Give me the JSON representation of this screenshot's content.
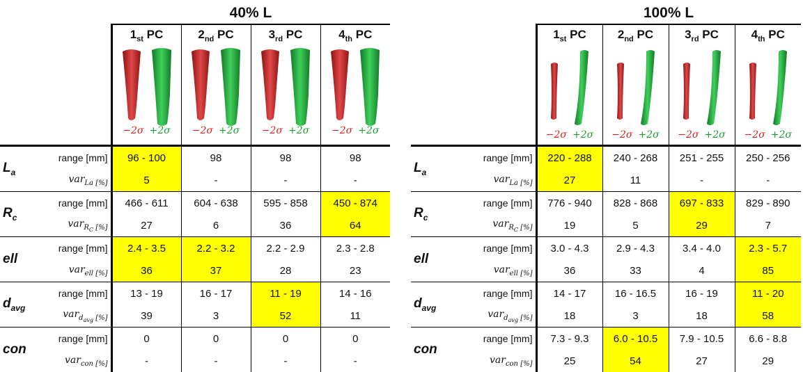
{
  "panels": [
    {
      "title": "40% L",
      "sigma_minus": "−2σ",
      "sigma_plus": "+2σ",
      "highlight_color": "#ffff00",
      "columns": [
        {
          "ordinal": "1",
          "suffix": "st",
          "label": "PC"
        },
        {
          "ordinal": "2",
          "suffix": "nd",
          "label": "PC"
        },
        {
          "ordinal": "3",
          "suffix": "rd",
          "label": "PC"
        },
        {
          "ordinal": "4",
          "suffix": "th",
          "label": "PC"
        }
      ],
      "groups": [
        {
          "symbol": "L",
          "subscript": "a",
          "rows": [
            {
              "label": "range [mm]",
              "cells": [
                {
                  "text": "96 - 100",
                  "highlight": true
                },
                {
                  "text": "98"
                },
                {
                  "text": "98"
                },
                {
                  "text": "98"
                }
              ]
            },
            {
              "var_label": {
                "base": "var",
                "sub": "La",
                "unit": "[%]"
              },
              "cells": [
                {
                  "text": "5",
                  "highlight": true
                },
                {
                  "text": "-"
                },
                {
                  "text": "-"
                },
                {
                  "text": "-"
                }
              ]
            }
          ]
        },
        {
          "symbol": "R",
          "subscript": "c",
          "rows": [
            {
              "label": "range [mm]",
              "cells": [
                {
                  "text": "466 - 611"
                },
                {
                  "text": "604 - 638"
                },
                {
                  "text": "595 - 858"
                },
                {
                  "text": "450 - 874",
                  "highlight": true
                }
              ]
            },
            {
              "var_label": {
                "base": "var",
                "sub": "R",
                "sub2": "C",
                "unit": "[%]"
              },
              "cells": [
                {
                  "text": "27"
                },
                {
                  "text": "6"
                },
                {
                  "text": "36"
                },
                {
                  "text": "64",
                  "highlight": true
                }
              ]
            }
          ]
        },
        {
          "symbol": "ell",
          "rows": [
            {
              "label": "range [mm]",
              "cells": [
                {
                  "text": "2.4 - 3.5",
                  "highlight": true
                },
                {
                  "text": "2.2 - 3.2",
                  "highlight": true
                },
                {
                  "text": "2.2 - 2.9"
                },
                {
                  "text": "2.3 - 2.8"
                }
              ]
            },
            {
              "var_label": {
                "base": "var",
                "sub": "ell",
                "unit": "[%]"
              },
              "cells": [
                {
                  "text": "36",
                  "highlight": true
                },
                {
                  "text": "37",
                  "highlight": true
                },
                {
                  "text": "28"
                },
                {
                  "text": "23"
                }
              ]
            }
          ]
        },
        {
          "symbol": "d",
          "subscript": "avg",
          "rows": [
            {
              "label": "range [mm]",
              "cells": [
                {
                  "text": "13 - 19"
                },
                {
                  "text": "16 - 17"
                },
                {
                  "text": "11 - 19",
                  "highlight": true
                },
                {
                  "text": "14 - 16"
                }
              ]
            },
            {
              "var_label": {
                "base": "var",
                "sub": "d",
                "sub2": "avg",
                "unit": "[%]"
              },
              "cells": [
                {
                  "text": "39"
                },
                {
                  "text": "3"
                },
                {
                  "text": "52",
                  "highlight": true
                },
                {
                  "text": "11"
                }
              ]
            }
          ]
        },
        {
          "symbol": "con",
          "rows": [
            {
              "label": "range [mm]",
              "cells": [
                {
                  "text": "0"
                },
                {
                  "text": "0"
                },
                {
                  "text": "0"
                },
                {
                  "text": "0"
                }
              ]
            },
            {
              "var_label": {
                "base": "var",
                "sub": "con",
                "unit": "[%]"
              },
              "cells": [
                {
                  "text": "-"
                },
                {
                  "text": "-"
                },
                {
                  "text": "-"
                },
                {
                  "text": "-"
                }
              ]
            }
          ]
        }
      ]
    },
    {
      "title": "100% L",
      "sigma_minus": "−2σ",
      "sigma_plus": "+2σ",
      "highlight_color": "#ffff00",
      "columns": [
        {
          "ordinal": "1",
          "suffix": "st",
          "label": "PC"
        },
        {
          "ordinal": "2",
          "suffix": "nd",
          "label": "PC"
        },
        {
          "ordinal": "3",
          "suffix": "rd",
          "label": "PC"
        },
        {
          "ordinal": "4",
          "suffix": "th",
          "label": "PC"
        }
      ],
      "groups": [
        {
          "symbol": "L",
          "subscript": "a",
          "rows": [
            {
              "label": "range [mm]",
              "cells": [
                {
                  "text": "220 - 288",
                  "highlight": true
                },
                {
                  "text": "240 - 268"
                },
                {
                  "text": "251 - 255"
                },
                {
                  "text": "250 - 256"
                }
              ]
            },
            {
              "var_label": {
                "base": "var",
                "sub": "La",
                "unit": "[%]"
              },
              "cells": [
                {
                  "text": "27",
                  "highlight": true
                },
                {
                  "text": "11"
                },
                {
                  "text": "-"
                },
                {
                  "text": "-"
                }
              ]
            }
          ]
        },
        {
          "symbol": "R",
          "subscript": "c",
          "rows": [
            {
              "label": "range [mm]",
              "cells": [
                {
                  "text": "776 - 940"
                },
                {
                  "text": "828 - 868"
                },
                {
                  "text": "697 - 833",
                  "highlight": true
                },
                {
                  "text": "829 - 890"
                }
              ]
            },
            {
              "var_label": {
                "base": "var",
                "sub": "R",
                "sub2": "C",
                "unit": "[%]"
              },
              "cells": [
                {
                  "text": "19"
                },
                {
                  "text": "5"
                },
                {
                  "text": "29",
                  "highlight": true
                },
                {
                  "text": "7"
                }
              ]
            }
          ]
        },
        {
          "symbol": "ell",
          "rows": [
            {
              "label": "range [mm]",
              "cells": [
                {
                  "text": "3.0 - 4.3"
                },
                {
                  "text": "2.9 - 4.3"
                },
                {
                  "text": "3.4 - 4.0"
                },
                {
                  "text": "2.3 - 5.7",
                  "highlight": true
                }
              ]
            },
            {
              "var_label": {
                "base": "var",
                "sub": "ell",
                "unit": "[%]"
              },
              "cells": [
                {
                  "text": "36"
                },
                {
                  "text": "33"
                },
                {
                  "text": "4"
                },
                {
                  "text": "85",
                  "highlight": true
                }
              ]
            }
          ]
        },
        {
          "symbol": "d",
          "subscript": "avg",
          "rows": [
            {
              "label": "range [mm]",
              "cells": [
                {
                  "text": "14 - 17"
                },
                {
                  "text": "16 - 16.5"
                },
                {
                  "text": "16 - 19"
                },
                {
                  "text": "11 - 20",
                  "highlight": true
                }
              ]
            },
            {
              "var_label": {
                "base": "var",
                "sub": "d",
                "sub2": "avg",
                "unit": "[%]"
              },
              "cells": [
                {
                  "text": "18"
                },
                {
                  "text": "3"
                },
                {
                  "text": "18"
                },
                {
                  "text": "58",
                  "highlight": true
                }
              ]
            }
          ]
        },
        {
          "symbol": "con",
          "rows": [
            {
              "label": "range [mm]",
              "cells": [
                {
                  "text": "7.3 - 9.3"
                },
                {
                  "text": "6.0 - 10.5",
                  "highlight": true
                },
                {
                  "text": "7.9 - 10.5"
                },
                {
                  "text": "6.6 - 8.8"
                }
              ]
            },
            {
              "var_label": {
                "base": "var",
                "sub": "con",
                "unit": "[%]"
              },
              "cells": [
                {
                  "text": "25"
                },
                {
                  "text": "54",
                  "highlight": true
                },
                {
                  "text": "27"
                },
                {
                  "text": "29"
                }
              ]
            }
          ]
        }
      ]
    }
  ]
}
